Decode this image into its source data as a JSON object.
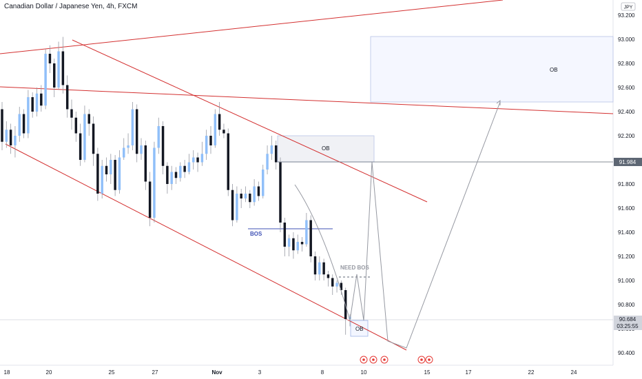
{
  "header": {
    "title": "Canadian Dollar / Japanese Yen, 4h, FXCM",
    "currency_badge": "JPY"
  },
  "chart_data": {
    "type": "candlestick",
    "symbol": "CADJPY",
    "timeframe": "4h",
    "ylim": [
      90.33,
      93.35
    ],
    "y_ticks": [
      "93.200",
      "93.000",
      "92.800",
      "92.600",
      "92.400",
      "92.200",
      "92.000",
      "91.800",
      "91.600",
      "91.400",
      "91.200",
      "91.000",
      "90.800",
      "90.600",
      "90.400"
    ],
    "x_ticks": [
      "18",
      "20",
      "25",
      "27",
      "Nov",
      "3",
      "8",
      "10",
      "15",
      "17",
      "22",
      "24"
    ],
    "price_badges": [
      {
        "value": "91.984",
        "color": "#5d6673"
      },
      {
        "value": "90.684",
        "sub": "03:25:55",
        "color": "#d1d4dc",
        "text_color": "#131722"
      }
    ],
    "annotations": {
      "bos_label": "BOS",
      "need_bos_label": "NEED BOS",
      "ob_label_top": "OB",
      "ob_label_mid": "OB",
      "ob_label_low": "OB"
    },
    "candles": [
      [
        92.42,
        92.15,
        92.48,
        92.08
      ],
      [
        92.15,
        92.25,
        92.32,
        92.1
      ],
      [
        92.25,
        92.12,
        92.3,
        92.05
      ],
      [
        92.12,
        92.2,
        92.28,
        92.02
      ],
      [
        92.2,
        92.38,
        92.44,
        92.15
      ],
      [
        92.38,
        92.22,
        92.42,
        92.18
      ],
      [
        92.22,
        92.52,
        92.58,
        92.18
      ],
      [
        92.52,
        92.4,
        92.56,
        92.35
      ],
      [
        92.4,
        92.55,
        92.6,
        92.36
      ],
      [
        92.55,
        92.45,
        92.62,
        92.4
      ],
      [
        92.45,
        92.88,
        92.92,
        92.42
      ],
      [
        92.88,
        92.8,
        92.95,
        92.72
      ],
      [
        92.8,
        92.6,
        92.84,
        92.52
      ],
      [
        92.6,
        92.9,
        92.98,
        92.58
      ],
      [
        92.9,
        92.62,
        93.02,
        92.55
      ],
      [
        92.62,
        92.42,
        92.7,
        92.35
      ],
      [
        92.42,
        92.35,
        92.5,
        92.25
      ],
      [
        92.35,
        92.22,
        92.4,
        92.15
      ],
      [
        92.22,
        92.0,
        92.3,
        91.95
      ],
      [
        92.0,
        92.38,
        92.45,
        91.98
      ],
      [
        92.38,
        92.3,
        92.42,
        92.2
      ],
      [
        92.3,
        92.05,
        92.36,
        91.95
      ],
      [
        92.05,
        91.72,
        92.1,
        91.66
      ],
      [
        91.72,
        91.95,
        92.0,
        91.68
      ],
      [
        91.95,
        91.88,
        92.02,
        91.82
      ],
      [
        91.88,
        92.0,
        92.05,
        91.8
      ],
      [
        92.0,
        91.75,
        92.04,
        91.7
      ],
      [
        91.75,
        92.02,
        92.08,
        91.72
      ],
      [
        92.02,
        92.1,
        92.18,
        92.0
      ],
      [
        92.1,
        92.12,
        92.22,
        92.05
      ],
      [
        92.12,
        92.42,
        92.48,
        92.08
      ],
      [
        92.42,
        92.05,
        92.46,
        91.98
      ],
      [
        92.05,
        92.12,
        92.18,
        92.0
      ],
      [
        92.12,
        91.82,
        92.16,
        91.75
      ],
      [
        91.82,
        91.52,
        91.9,
        91.45
      ],
      [
        91.52,
        92.1,
        92.15,
        91.48
      ],
      [
        92.1,
        92.28,
        92.35,
        92.05
      ],
      [
        92.28,
        91.95,
        92.32,
        91.88
      ],
      [
        91.95,
        91.8,
        91.98,
        91.72
      ],
      [
        91.8,
        91.9,
        91.95,
        91.75
      ],
      [
        91.9,
        91.85,
        91.94,
        91.8
      ],
      [
        91.85,
        91.95,
        91.98,
        91.82
      ],
      [
        91.95,
        91.9,
        92.0,
        91.85
      ],
      [
        91.9,
        91.98,
        92.05,
        91.88
      ],
      [
        91.98,
        92.02,
        92.08,
        91.92
      ],
      [
        92.02,
        91.98,
        92.06,
        91.9
      ],
      [
        91.98,
        92.05,
        92.15,
        91.95
      ],
      [
        92.05,
        92.2,
        92.25,
        92.0
      ],
      [
        92.2,
        92.12,
        92.28,
        92.05
      ],
      [
        92.12,
        92.38,
        92.42,
        92.1
      ],
      [
        92.38,
        92.25,
        92.48,
        92.2
      ],
      [
        92.25,
        92.22,
        92.3,
        92.18
      ],
      [
        92.22,
        91.75,
        92.26,
        91.7
      ],
      [
        91.75,
        91.5,
        91.8,
        91.45
      ],
      [
        91.5,
        91.72,
        91.78,
        91.48
      ],
      [
        91.72,
        91.68,
        91.76,
        91.6
      ],
      [
        91.68,
        91.72,
        91.78,
        91.65
      ],
      [
        91.72,
        91.65,
        91.75,
        91.6
      ],
      [
        91.65,
        91.78,
        91.84,
        91.62
      ],
      [
        91.78,
        91.7,
        91.82,
        91.66
      ],
      [
        91.7,
        91.92,
        91.96,
        91.68
      ],
      [
        91.92,
        92.05,
        92.12,
        91.88
      ],
      [
        92.05,
        92.12,
        92.2,
        92.0
      ],
      [
        92.12,
        91.98,
        92.16,
        91.92
      ],
      [
        91.98,
        91.48,
        92.02,
        91.4
      ],
      [
        91.48,
        91.28,
        91.52,
        91.2
      ],
      [
        91.28,
        91.35,
        91.38,
        91.2
      ],
      [
        91.35,
        91.25,
        91.4,
        91.18
      ],
      [
        91.25,
        91.32,
        91.38,
        91.22
      ],
      [
        91.32,
        91.3,
        91.36,
        91.24
      ],
      [
        91.3,
        91.5,
        91.56,
        91.28
      ],
      [
        91.5,
        91.2,
        91.54,
        91.15
      ],
      [
        91.2,
        91.05,
        91.24,
        91.0
      ],
      [
        91.05,
        91.15,
        91.2,
        91.0
      ],
      [
        91.15,
        91.05,
        91.18,
        91.0
      ],
      [
        91.05,
        91.02,
        91.08,
        90.95
      ],
      [
        91.02,
        90.95,
        91.05,
        90.88
      ],
      [
        90.95,
        90.98,
        91.0,
        90.9
      ],
      [
        90.98,
        90.92,
        91.0,
        90.88
      ],
      [
        90.92,
        90.68,
        90.94,
        90.55
      ],
      [
        90.68,
        90.7,
        90.72,
        90.62
      ]
    ]
  }
}
